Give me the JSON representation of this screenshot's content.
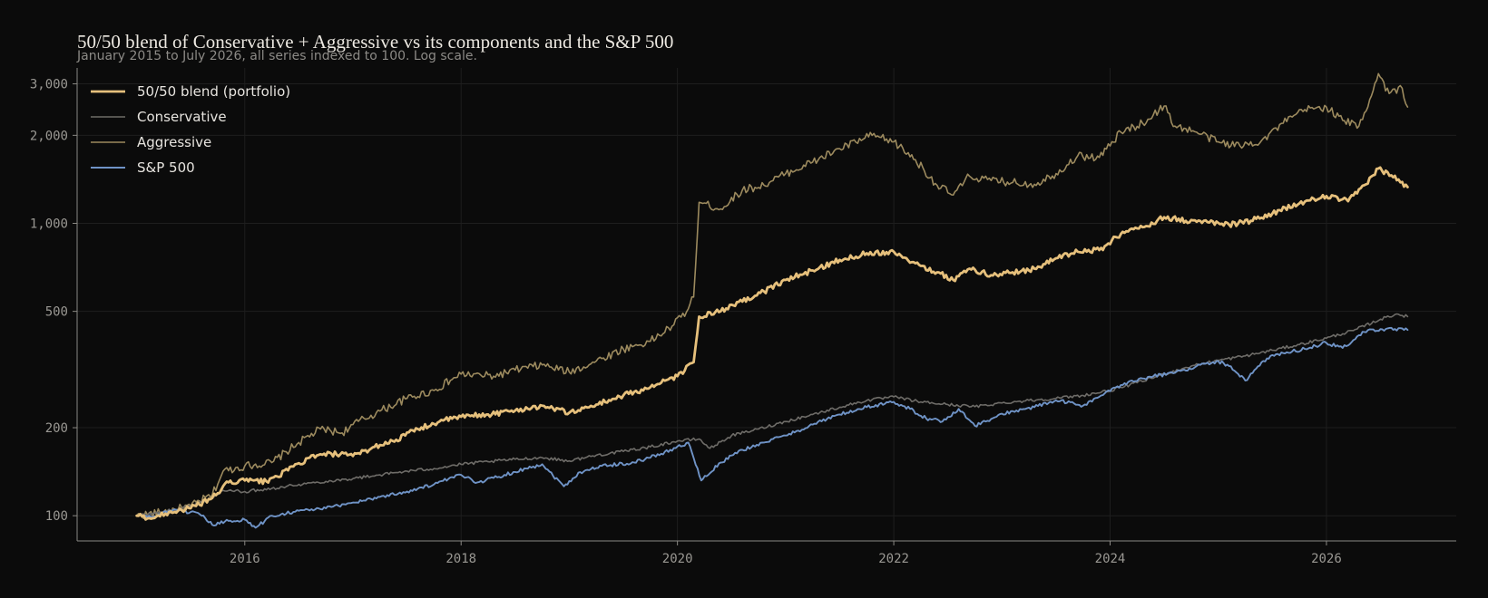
{
  "chart_data": {
    "type": "line",
    "title": "50/50 blend of Conservative + Aggressive vs its components and the S&P 500",
    "subtitle": "January 2015 to July 2026, all series indexed to 100. Log scale.",
    "xlabel": "",
    "ylabel": "",
    "y_scale": "log",
    "ylim": [
      82,
      3400
    ],
    "xlim": [
      2014.45,
      2027.2
    ],
    "grid": true,
    "legend_position": "top-left",
    "x_ticks": [
      2016,
      2018,
      2020,
      2022,
      2024,
      2026
    ],
    "x_tick_labels": [
      "2016",
      "2018",
      "2020",
      "2022",
      "2024",
      "2026"
    ],
    "y_ticks": [
      100,
      200,
      500,
      1000,
      2000,
      3000
    ],
    "y_tick_labels": [
      "100",
      "200",
      "500",
      "1,000",
      "2,000",
      "3,000"
    ],
    "series": [
      {
        "name": "Aggressive",
        "color": "#9c8a5e",
        "line_width": 1.6,
        "points": [
          [
            2015.0,
            100
          ],
          [
            2015.25,
            103
          ],
          [
            2015.5,
            108
          ],
          [
            2015.7,
            118
          ],
          [
            2015.8,
            142
          ],
          [
            2016.0,
            148
          ],
          [
            2016.25,
            152
          ],
          [
            2016.5,
            178
          ],
          [
            2016.7,
            198
          ],
          [
            2016.9,
            192
          ],
          [
            2017.0,
            205
          ],
          [
            2017.25,
            228
          ],
          [
            2017.5,
            252
          ],
          [
            2017.75,
            268
          ],
          [
            2017.9,
            290
          ],
          [
            2018.0,
            305
          ],
          [
            2018.3,
            300
          ],
          [
            2018.5,
            315
          ],
          [
            2018.75,
            328
          ],
          [
            2019.0,
            310
          ],
          [
            2019.25,
            338
          ],
          [
            2019.5,
            372
          ],
          [
            2019.75,
            395
          ],
          [
            2019.95,
            445
          ],
          [
            2020.1,
            510
          ],
          [
            2020.15,
            560
          ],
          [
            2020.2,
            1180
          ],
          [
            2020.4,
            1120
          ],
          [
            2020.6,
            1300
          ],
          [
            2020.8,
            1350
          ],
          [
            2021.0,
            1480
          ],
          [
            2021.25,
            1620
          ],
          [
            2021.5,
            1800
          ],
          [
            2021.8,
            2000
          ],
          [
            2022.0,
            1900
          ],
          [
            2022.2,
            1650
          ],
          [
            2022.4,
            1350
          ],
          [
            2022.55,
            1250
          ],
          [
            2022.7,
            1450
          ],
          [
            2022.9,
            1400
          ],
          [
            2023.1,
            1380
          ],
          [
            2023.3,
            1360
          ],
          [
            2023.5,
            1480
          ],
          [
            2023.7,
            1700
          ],
          [
            2023.9,
            1680
          ],
          [
            2024.1,
            2050
          ],
          [
            2024.3,
            2200
          ],
          [
            2024.5,
            2520
          ],
          [
            2024.6,
            2150
          ],
          [
            2024.8,
            2050
          ],
          [
            2025.0,
            1900
          ],
          [
            2025.2,
            1840
          ],
          [
            2025.4,
            1920
          ],
          [
            2025.6,
            2200
          ],
          [
            2025.8,
            2450
          ],
          [
            2026.0,
            2500
          ],
          [
            2026.15,
            2250
          ],
          [
            2026.3,
            2150
          ],
          [
            2026.4,
            2650
          ],
          [
            2026.48,
            3250
          ],
          [
            2026.58,
            2780
          ],
          [
            2026.7,
            2900
          ],
          [
            2026.75,
            2500
          ]
        ]
      },
      {
        "name": "Conservative",
        "color": "#6e6c68",
        "line_width": 1.6,
        "points": [
          [
            2015.0,
            100
          ],
          [
            2015.25,
            103
          ],
          [
            2015.5,
            108
          ],
          [
            2015.7,
            115
          ],
          [
            2015.8,
            122
          ],
          [
            2016.0,
            121
          ],
          [
            2016.25,
            124
          ],
          [
            2016.5,
            128
          ],
          [
            2016.75,
            131
          ],
          [
            2017.0,
            134
          ],
          [
            2017.25,
            138
          ],
          [
            2017.5,
            142
          ],
          [
            2017.75,
            145
          ],
          [
            2018.0,
            150
          ],
          [
            2018.25,
            153
          ],
          [
            2018.5,
            156
          ],
          [
            2018.75,
            158
          ],
          [
            2019.0,
            154
          ],
          [
            2019.25,
            161
          ],
          [
            2019.5,
            166
          ],
          [
            2019.75,
            172
          ],
          [
            2020.0,
            180
          ],
          [
            2020.2,
            183
          ],
          [
            2020.3,
            170
          ],
          [
            2020.5,
            188
          ],
          [
            2020.75,
            198
          ],
          [
            2021.0,
            210
          ],
          [
            2021.25,
            222
          ],
          [
            2021.5,
            235
          ],
          [
            2021.75,
            248
          ],
          [
            2022.0,
            255
          ],
          [
            2022.25,
            245
          ],
          [
            2022.5,
            240
          ],
          [
            2022.75,
            236
          ],
          [
            2023.0,
            243
          ],
          [
            2023.25,
            248
          ],
          [
            2023.5,
            252
          ],
          [
            2023.75,
            258
          ],
          [
            2024.0,
            268
          ],
          [
            2024.25,
            285
          ],
          [
            2024.5,
            305
          ],
          [
            2024.75,
            325
          ],
          [
            2025.0,
            340
          ],
          [
            2025.25,
            352
          ],
          [
            2025.5,
            368
          ],
          [
            2025.75,
            385
          ],
          [
            2026.0,
            405
          ],
          [
            2026.25,
            430
          ],
          [
            2026.5,
            470
          ],
          [
            2026.65,
            490
          ],
          [
            2026.75,
            480
          ]
        ]
      },
      {
        "name": "S&P 500",
        "color": "#6f93c6",
        "line_width": 1.9,
        "points": [
          [
            2015.0,
            100
          ],
          [
            2015.15,
            99
          ],
          [
            2015.3,
            104
          ],
          [
            2015.5,
            103
          ],
          [
            2015.6,
            100
          ],
          [
            2015.7,
            93
          ],
          [
            2015.85,
            96
          ],
          [
            2016.0,
            97
          ],
          [
            2016.1,
            91
          ],
          [
            2016.25,
            100
          ],
          [
            2016.5,
            104
          ],
          [
            2016.75,
            106
          ],
          [
            2017.0,
            111
          ],
          [
            2017.25,
            116
          ],
          [
            2017.5,
            121
          ],
          [
            2017.75,
            128
          ],
          [
            2018.0,
            138
          ],
          [
            2018.15,
            130
          ],
          [
            2018.4,
            138
          ],
          [
            2018.6,
            145
          ],
          [
            2018.75,
            150
          ],
          [
            2018.95,
            126
          ],
          [
            2019.1,
            141
          ],
          [
            2019.3,
            148
          ],
          [
            2019.6,
            152
          ],
          [
            2019.85,
            163
          ],
          [
            2020.1,
            178
          ],
          [
            2020.22,
            132
          ],
          [
            2020.4,
            152
          ],
          [
            2020.6,
            168
          ],
          [
            2020.8,
            178
          ],
          [
            2021.0,
            188
          ],
          [
            2021.25,
            205
          ],
          [
            2021.5,
            222
          ],
          [
            2021.75,
            235
          ],
          [
            2022.0,
            245
          ],
          [
            2022.15,
            232
          ],
          [
            2022.3,
            215
          ],
          [
            2022.45,
            210
          ],
          [
            2022.6,
            232
          ],
          [
            2022.75,
            203
          ],
          [
            2022.95,
            218
          ],
          [
            2023.1,
            228
          ],
          [
            2023.3,
            235
          ],
          [
            2023.5,
            248
          ],
          [
            2023.75,
            238
          ],
          [
            2023.95,
            262
          ],
          [
            2024.2,
            290
          ],
          [
            2024.4,
            300
          ],
          [
            2024.6,
            308
          ],
          [
            2024.8,
            325
          ],
          [
            2025.0,
            338
          ],
          [
            2025.1,
            325
          ],
          [
            2025.25,
            290
          ],
          [
            2025.45,
            345
          ],
          [
            2025.6,
            360
          ],
          [
            2025.8,
            372
          ],
          [
            2026.0,
            390
          ],
          [
            2026.15,
            375
          ],
          [
            2026.35,
            425
          ],
          [
            2026.5,
            435
          ],
          [
            2026.75,
            432
          ]
        ]
      },
      {
        "name": "50/50 blend (portfolio)",
        "color": "#e6c07c",
        "line_width": 2.8,
        "points": [
          [
            2015.0,
            100
          ],
          [
            2015.15,
            98
          ],
          [
            2015.3,
            103
          ],
          [
            2015.5,
            106
          ],
          [
            2015.7,
            115
          ],
          [
            2015.85,
            130
          ],
          [
            2016.0,
            132
          ],
          [
            2016.2,
            131
          ],
          [
            2016.4,
            143
          ],
          [
            2016.6,
            158
          ],
          [
            2016.8,
            163
          ],
          [
            2017.0,
            160
          ],
          [
            2017.2,
            172
          ],
          [
            2017.4,
            182
          ],
          [
            2017.6,
            198
          ],
          [
            2017.8,
            210
          ],
          [
            2018.0,
            218
          ],
          [
            2018.25,
            222
          ],
          [
            2018.5,
            229
          ],
          [
            2018.75,
            238
          ],
          [
            2019.0,
            225
          ],
          [
            2019.25,
            240
          ],
          [
            2019.5,
            258
          ],
          [
            2019.75,
            275
          ],
          [
            2020.0,
            300
          ],
          [
            2020.15,
            335
          ],
          [
            2020.2,
            480
          ],
          [
            2020.4,
            500
          ],
          [
            2020.6,
            540
          ],
          [
            2020.8,
            585
          ],
          [
            2021.0,
            640
          ],
          [
            2021.25,
            690
          ],
          [
            2021.5,
            750
          ],
          [
            2021.75,
            790
          ],
          [
            2022.0,
            800
          ],
          [
            2022.2,
            730
          ],
          [
            2022.4,
            680
          ],
          [
            2022.55,
            640
          ],
          [
            2022.7,
            700
          ],
          [
            2022.9,
            665
          ],
          [
            2023.1,
            680
          ],
          [
            2023.3,
            700
          ],
          [
            2023.5,
            760
          ],
          [
            2023.7,
            800
          ],
          [
            2023.9,
            810
          ],
          [
            2024.1,
            920
          ],
          [
            2024.3,
            970
          ],
          [
            2024.5,
            1050
          ],
          [
            2024.7,
            1020
          ],
          [
            2024.9,
            1010
          ],
          [
            2025.1,
            990
          ],
          [
            2025.3,
            1020
          ],
          [
            2025.5,
            1080
          ],
          [
            2025.75,
            1170
          ],
          [
            2026.0,
            1240
          ],
          [
            2026.2,
            1190
          ],
          [
            2026.35,
            1350
          ],
          [
            2026.48,
            1540
          ],
          [
            2026.6,
            1460
          ],
          [
            2026.75,
            1330
          ]
        ]
      }
    ],
    "legend": [
      {
        "name": "50/50 blend (portfolio)",
        "color": "#e6c07c",
        "line_width": 2.8
      },
      {
        "name": "Conservative",
        "color": "#6e6c68",
        "line_width": 1.6
      },
      {
        "name": "Aggressive",
        "color": "#9c8a5e",
        "line_width": 1.6
      },
      {
        "name": "S&P 500",
        "color": "#6f93c6",
        "line_width": 1.9
      }
    ]
  }
}
